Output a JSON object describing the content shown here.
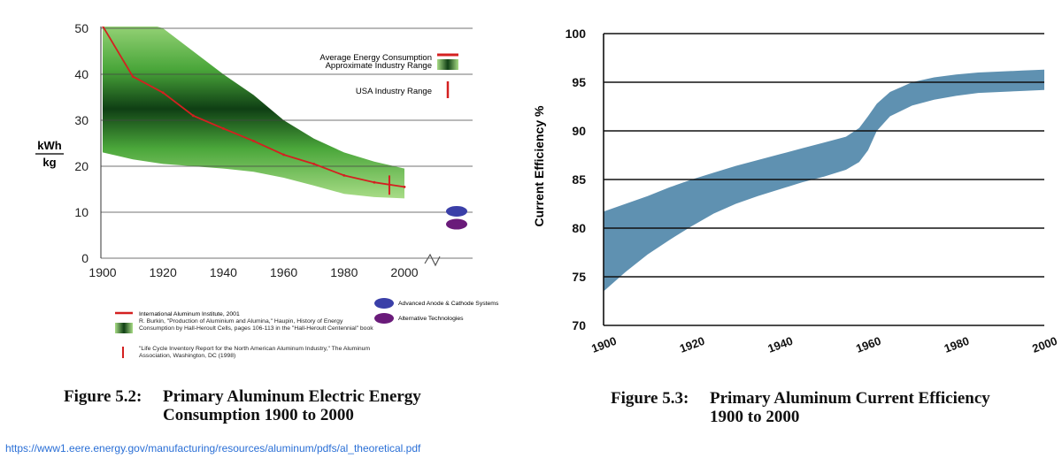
{
  "chart_data": [
    {
      "type": "line",
      "ylabel_top": "kWh",
      "ylabel_bottom": "kg",
      "x_ticks": [
        "1900",
        "1920",
        "1940",
        "1960",
        "1980",
        "2000"
      ],
      "y_ticks": [
        "0",
        "10",
        "20",
        "30",
        "40",
        "50"
      ],
      "xlim": [
        1900,
        2020
      ],
      "ylim": [
        0,
        50
      ],
      "grid": "horizontal",
      "legend_position": "top-right",
      "legend_top": [
        {
          "label": "Average Energy Consumption",
          "color": "#d42020"
        },
        {
          "label": "Approximate Industry Range",
          "color": "#3c9a2a"
        },
        {
          "label": "USA Industry Range",
          "color": "#d42020"
        }
      ],
      "series": [
        {
          "name": "Average Energy Consumption",
          "x": [
            1900,
            1910,
            1920,
            1930,
            1940,
            1950,
            1960,
            1970,
            1980,
            1990,
            2000
          ],
          "y": [
            50.5,
            39.5,
            36,
            31,
            28.2,
            25.5,
            22.5,
            20.5,
            18,
            16.5,
            15.5
          ],
          "color": "#d42020"
        }
      ],
      "industry_range": {
        "x": [
          1900,
          1910,
          1920,
          1930,
          1940,
          1950,
          1960,
          1970,
          1980,
          1990,
          2000
        ],
        "low": [
          23,
          21.5,
          20.5,
          20,
          19.5,
          18.8,
          17.5,
          15.8,
          14,
          13.3,
          13
        ],
        "high": [
          52,
          52,
          50,
          45,
          40,
          35.5,
          30,
          26,
          23,
          21,
          19.5
        ]
      },
      "usa_range": {
        "x": 1995,
        "low": 13.8,
        "high": 18
      },
      "future_markers": [
        {
          "label": "Advanced Anode & Cathode Systems",
          "y": 10.2,
          "color": "#3a3fa8"
        },
        {
          "label": "Alternative Technologies",
          "y": 7.4,
          "color": "#6a1b7a"
        }
      ],
      "footnotes": [
        {
          "text": "International Aluminum Institute, 2001",
          "marker_color": "#d42020"
        },
        {
          "text": "R. Burkin, \"Production of Aluminium and Alumina,\" Haupin, History of Energy Consumption by Hall-Heroult Cells, pages 106-113 in the \"Hall-Heroult Centennial\" book",
          "marker_color": "#3c9a2a"
        },
        {
          "text": "\"Life Cycle Inventory Report for the North American Aluminum Industry,\" The Aluminum Association, Washington, DC (1998)",
          "marker_color": "#d42020"
        }
      ]
    },
    {
      "type": "area",
      "ylabel": "Current Efficiency %",
      "x_ticks": [
        "1900",
        "1920",
        "1940",
        "1960",
        "1980",
        "2000"
      ],
      "y_ticks": [
        "70",
        "75",
        "80",
        "85",
        "90",
        "95",
        "100"
      ],
      "xlim": [
        1900,
        2000
      ],
      "ylim": [
        70,
        100
      ],
      "grid": "horizontal",
      "series": [
        {
          "x": [
            1900,
            1905,
            1910,
            1915,
            1920,
            1925,
            1930,
            1935,
            1940,
            1945,
            1950,
            1955,
            1958,
            1960,
            1962,
            1965,
            1970,
            1975,
            1980,
            1985,
            1990,
            1995,
            2000
          ],
          "low": [
            73.5,
            75.5,
            77.3,
            78.8,
            80.2,
            81.5,
            82.5,
            83.3,
            84,
            84.7,
            85.3,
            86,
            86.8,
            88,
            90,
            91.5,
            92.6,
            93.2,
            93.6,
            93.9,
            94,
            94.1,
            94.2
          ],
          "high": [
            81.7,
            82.5,
            83.3,
            84.2,
            85,
            85.7,
            86.4,
            87,
            87.6,
            88.2,
            88.8,
            89.4,
            90.3,
            91.5,
            92.8,
            94,
            95,
            95.5,
            95.8,
            96,
            96.1,
            96.2,
            96.3
          ],
          "color": "#5f91b1"
        }
      ]
    }
  ],
  "captions": {
    "fig2_label": "Figure 5.2:",
    "fig2_line1": "Primary Aluminum Electric Energy",
    "fig2_line2": "Consumption 1900 to 2000",
    "fig3_label": "Figure 5.3:",
    "fig3_line1": "Primary Aluminum Current Efficiency",
    "fig3_line2": "1900 to 2000"
  },
  "source_url": "https://www1.eere.energy.gov/manufacturing/resources/aluminum/pdfs/al_theoretical.pdf"
}
